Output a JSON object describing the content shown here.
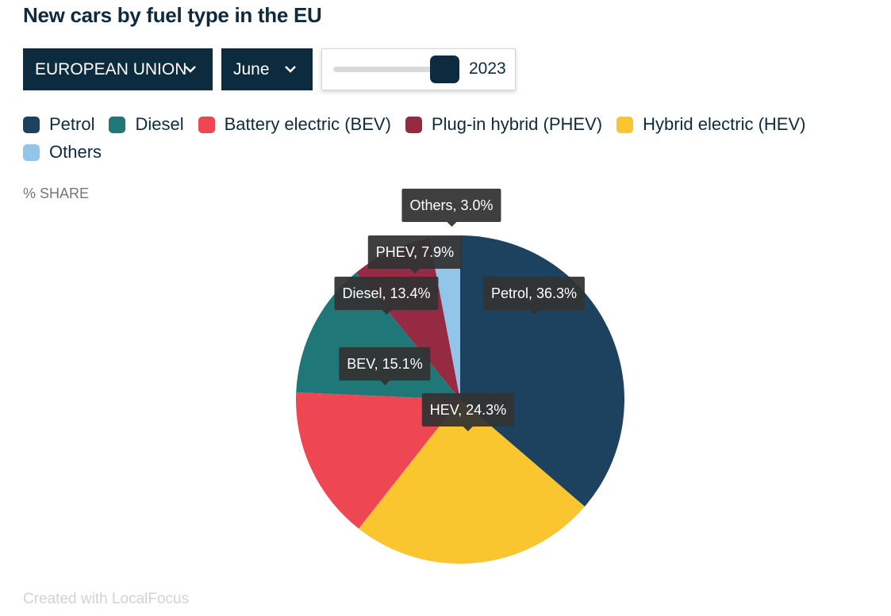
{
  "title": "New cars by fuel type in the EU",
  "controls": {
    "region": "EUROPEAN UNION",
    "month": "June",
    "year": "2023",
    "year_fraction": 1.0
  },
  "share_label": "% SHARE",
  "credit": "Created with LocalFocus",
  "chart_data": {
    "type": "pie",
    "title": "New cars by fuel type in the EU",
    "unit": "%",
    "legend_position": "top-left",
    "slices": [
      {
        "key": "petrol",
        "legend": "Petrol",
        "label": "Petrol",
        "value": 36.3,
        "color": "#1c425f"
      },
      {
        "key": "hev",
        "legend": "Hybrid electric (HEV)",
        "label": "HEV",
        "value": 24.3,
        "color": "#f9c62f"
      },
      {
        "key": "bev",
        "legend": "Battery electric (BEV)",
        "label": "BEV",
        "value": 15.1,
        "color": "#ee4653"
      },
      {
        "key": "diesel",
        "legend": "Diesel",
        "label": "Diesel",
        "value": 13.4,
        "color": "#1f7877"
      },
      {
        "key": "phev",
        "legend": "Plug-in hybrid (PHEV)",
        "label": "PHEV",
        "value": 7.9,
        "color": "#962a43"
      },
      {
        "key": "others",
        "legend": "Others",
        "label": "Others",
        "value": 3.0,
        "color": "#92c6e8"
      }
    ],
    "legend_order": [
      "petrol",
      "diesel",
      "bev",
      "phev",
      "hev",
      "others"
    ]
  }
}
